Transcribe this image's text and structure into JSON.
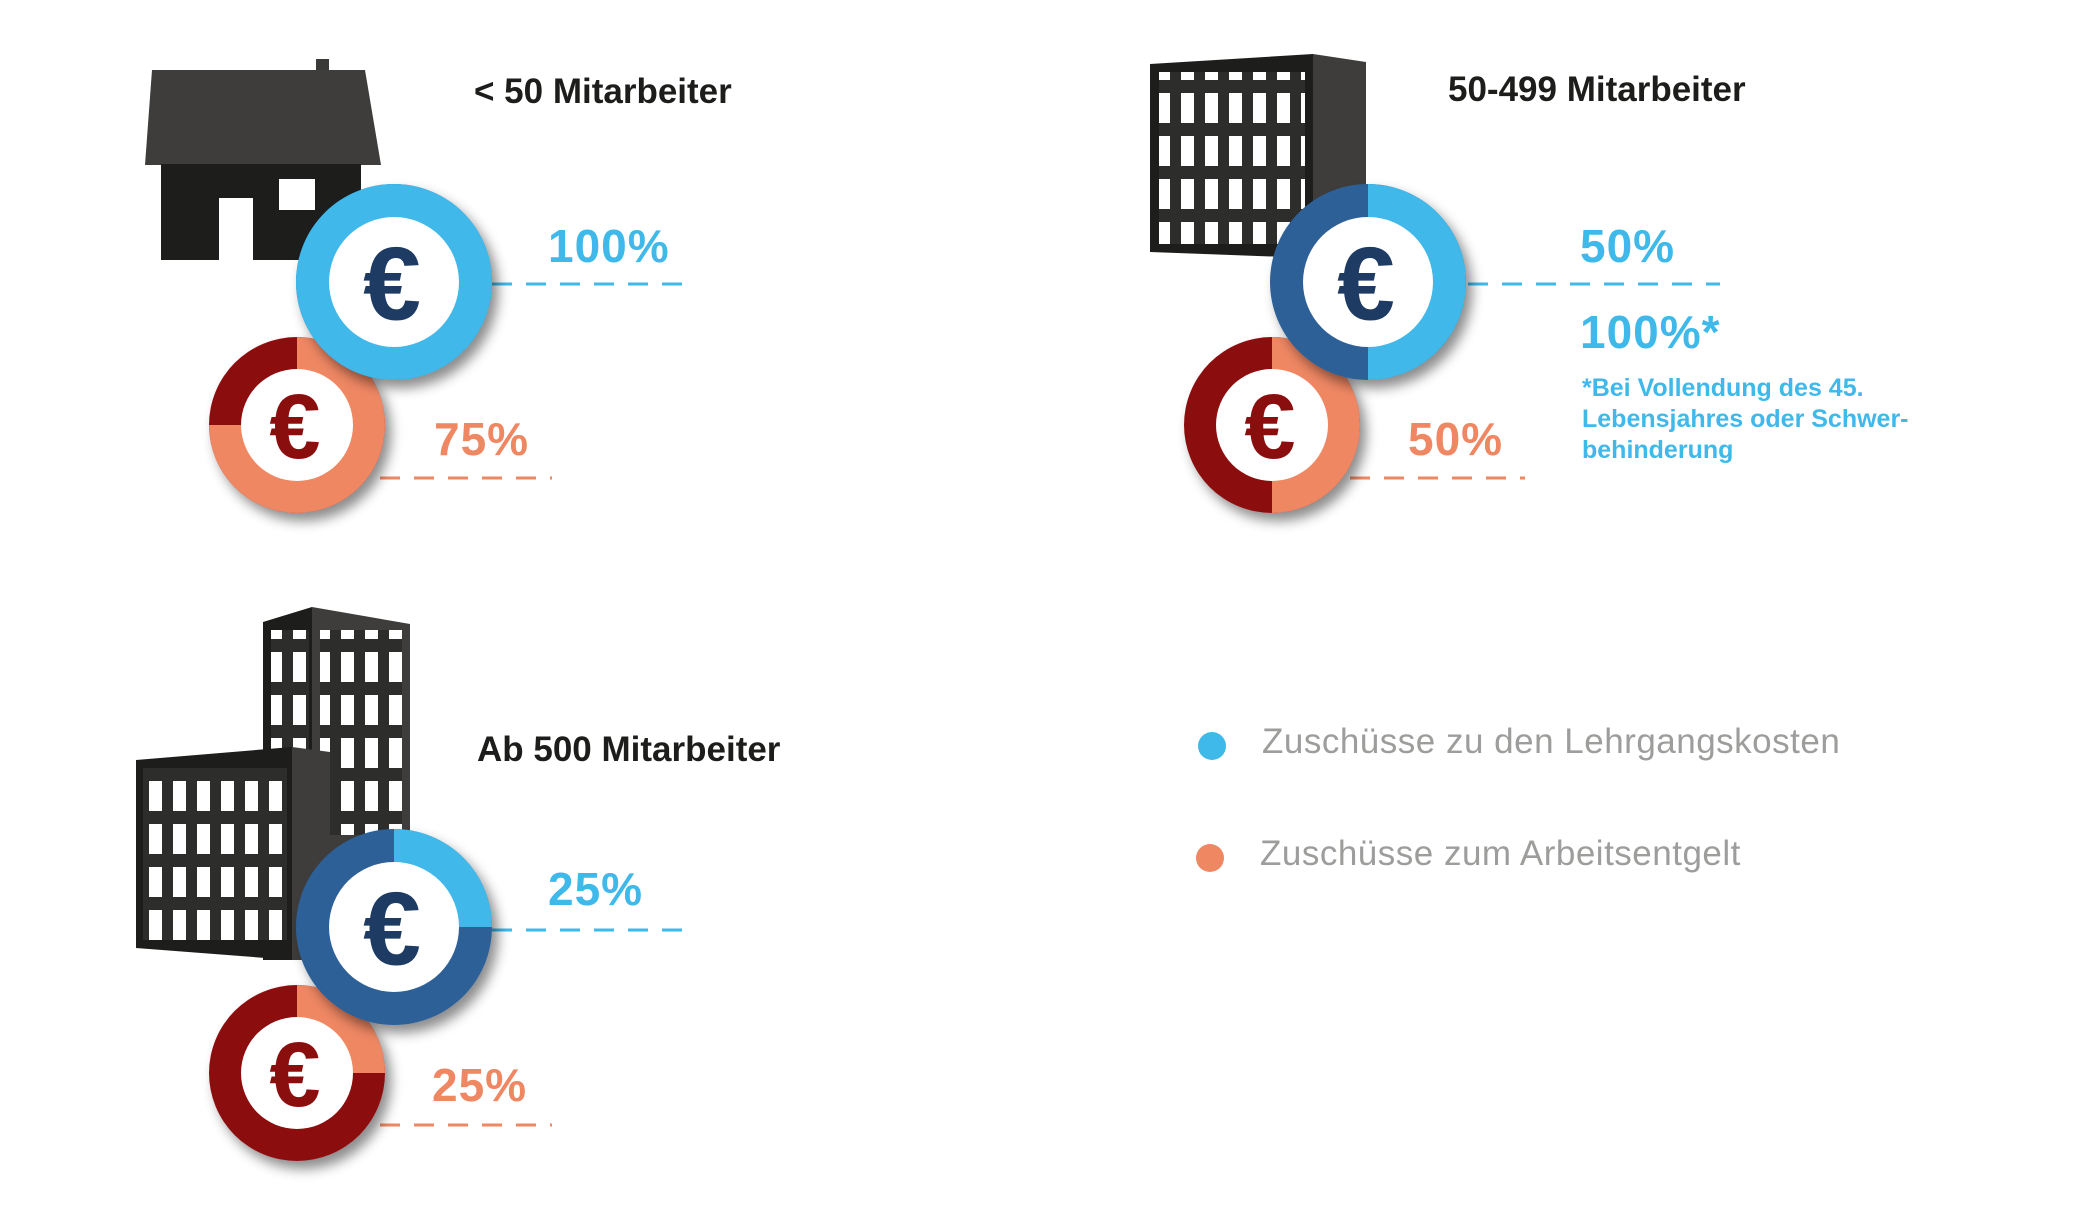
{
  "groups": {
    "small": {
      "title": "< 50 Mitarbeiter",
      "lehrgang": "100%",
      "entgelt": "75%",
      "lehrgang_fraction": 1.0,
      "entgelt_fraction": 0.75
    },
    "medium": {
      "title": "50-499 Mitarbeiter",
      "lehrgang": "50%",
      "lehrgang_alt": "100%*",
      "entgelt": "50%",
      "lehrgang_fraction": 0.5,
      "entgelt_fraction": 0.5,
      "note": [
        "*Bei Vollendung des 45.",
        "Lebensjahres oder Schwer-",
        "behinderung"
      ]
    },
    "large": {
      "title": "Ab 500 Mitarbeiter",
      "lehrgang": "25%",
      "entgelt": "25%",
      "lehrgang_fraction": 0.25,
      "entgelt_fraction": 0.25
    }
  },
  "currency_symbol": "€",
  "legend": [
    {
      "label": "Zuschüsse zu den Lehrgangskosten",
      "color": "#3fb8ea"
    },
    {
      "label": "Zuschüsse zum Arbeitsentgelt",
      "color": "#ef8763"
    }
  ],
  "colors": {
    "blue_light": "#3fb8ea",
    "blue_dark": "#2d6198",
    "orange": "#ef8763",
    "red_dark": "#8b0e0e",
    "euro_blue": "#1e3b63",
    "euro_red": "#8b0e0e",
    "building": "#2d2d2b"
  },
  "icons": {
    "small": "house-icon",
    "medium": "office-building-icon",
    "large": "high-rise-icon"
  }
}
